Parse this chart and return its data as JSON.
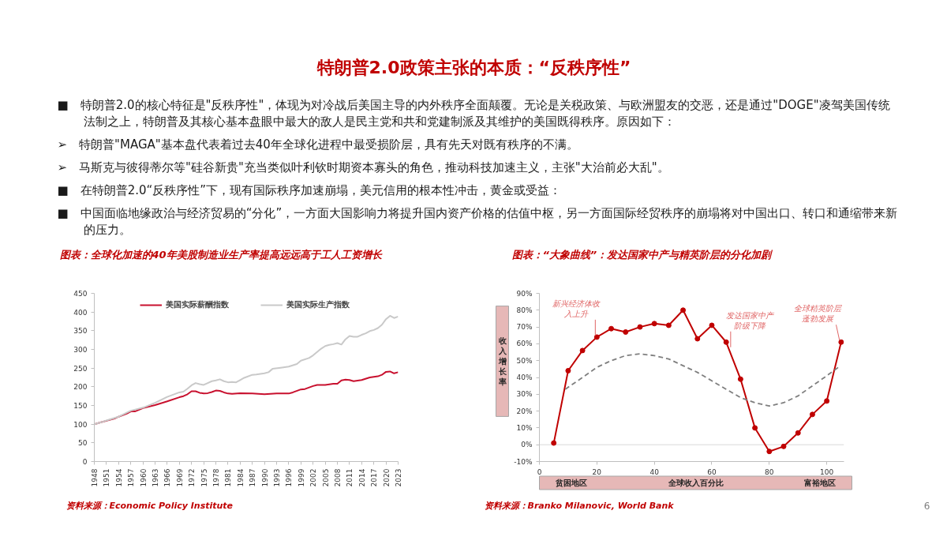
{
  "chart_data": [
    {
      "type": "other",
      "title": "特朗普2.0政策主张的本质：“反秩序性”",
      "annotations": [
        "■ 特朗普2.0的核心特征是\"反秩序性\"，体现为对冷战后美国主导的内外秩序全面颠覆。无论是关税政策、与欧洲盟友的交恶，还是通过\"DOGE\"凌驾美国传统法制之上，特朗普及其核心基本盘眼中最大的敌人是民主党和共和党建制派及其维护的美国既得秩序。原因如下：",
        "➢ 特朗普\"MAGA\"基本盘代表着过去40年全球化进程中最受损阶层，具有先天对既有秩序的不满。",
        "➢ 马斯克与彼得蒂尔等\"硅谷新贵\"充当类似叶利钦时期资本寡头的角色，推动科技加速主义，主张\"大治前必大乱\"。",
        "■ 在特朗普2.0“反秩序性”下，现有国际秩序加速崩塌，美元信用的根本性冲击，黄金或受益：",
        "■ 中国面临地缘政治与经济贸易的“分化”，一方面大国影响力将提升国内资产价格的估值中枢，另一方面国际经贸秩序的崩塌将对中国出口、转口和通缩带来新的压力。"
      ]
    },
    {
      "type": "line",
      "title": "图表：全球化加速的40年美股制造业生产率提高远远高于工人工资增长",
      "legend": "top",
      "xlim": [
        1948,
        2023
      ],
      "xticks": [
        1948,
        1951,
        1954,
        1957,
        1960,
        1963,
        1966,
        1969,
        1972,
        1975,
        1978,
        1981,
        1984,
        1987,
        1990,
        1993,
        1996,
        1999,
        2002,
        2005,
        2008,
        2011,
        2014,
        2017,
        2020,
        2023
      ],
      "ylim": [
        0,
        450
      ],
      "yticks": [
        0,
        50,
        100,
        150,
        200,
        250,
        300,
        350,
        400,
        450
      ],
      "series": [
        {
          "name": "美国实际薪酬指数",
          "color": "#c8102e",
          "x": [
            1948,
            1950,
            1951,
            1953,
            1954,
            1956,
            1957,
            1958,
            1960,
            1963,
            1966,
            1969,
            1970,
            1971,
            1972,
            1973,
            1974,
            1975,
            1976,
            1977,
            1978,
            1979,
            1980,
            1981,
            1982,
            1984,
            1987,
            1990,
            1993,
            1996,
            1997,
            1999,
            2000,
            2002,
            2003,
            2005,
            2007,
            2008,
            2009,
            2010,
            2011,
            2012,
            2014,
            2016,
            2018,
            2019,
            2020,
            2021,
            2022,
            2023
          ],
          "values": [
            100,
            106,
            109,
            115,
            120,
            128,
            134,
            134,
            143,
            151,
            161,
            172,
            175,
            180,
            188,
            188,
            184,
            182,
            183,
            186,
            190,
            189,
            185,
            182,
            181,
            183,
            182,
            180,
            182,
            182,
            185,
            193,
            194,
            202,
            205,
            205,
            208,
            208,
            217,
            219,
            218,
            215,
            218,
            225,
            228,
            232,
            240,
            241,
            236,
            239
          ]
        },
        {
          "name": "美国实际生产指数",
          "color": "#c9c9c9",
          "x": [
            1948,
            1950,
            1951,
            1954,
            1957,
            1960,
            1963,
            1966,
            1969,
            1970,
            1971,
            1972,
            1973,
            1974,
            1975,
            1976,
            1977,
            1978,
            1979,
            1980,
            1981,
            1982,
            1983,
            1984,
            1985,
            1987,
            1988,
            1990,
            1991,
            1992,
            1994,
            1996,
            1998,
            1999,
            2001,
            2002,
            2003,
            2004,
            2005,
            2006,
            2007,
            2008,
            2009,
            2010,
            2011,
            2012,
            2013,
            2014,
            2015,
            2016,
            2017,
            2018,
            2019,
            2020,
            2021,
            2022,
            2023
          ],
          "values": [
            100,
            106,
            110,
            120,
            136,
            144,
            157,
            173,
            185,
            187,
            195,
            204,
            210,
            207,
            205,
            210,
            215,
            217,
            220,
            215,
            212,
            213,
            212,
            218,
            224,
            232,
            233,
            236,
            239,
            248,
            251,
            254,
            261,
            270,
            277,
            284,
            293,
            302,
            309,
            312,
            314,
            317,
            313,
            327,
            336,
            334,
            334,
            339,
            343,
            349,
            352,
            357,
            366,
            381,
            390,
            384,
            388
          ]
        }
      ],
      "annotations": [
        "资料来源：Economic Policy Institute"
      ]
    },
    {
      "type": "line",
      "title": "图表：“大象曲线”：发达国家中产与精英阶层的分化加剧",
      "ylabel": "收入增长率",
      "xlabel": "全球收入百分比",
      "marker": "circle",
      "xlim": [
        0,
        106
      ],
      "xticks": [
        0,
        20,
        40,
        60,
        80,
        100
      ],
      "ylim": [
        -10,
        90
      ],
      "yticks": [
        {
          "value": -10,
          "label": "-10%"
        },
        {
          "value": 0,
          "label": "0%"
        },
        {
          "value": 10,
          "label": "10%"
        },
        {
          "value": 20,
          "label": "20%"
        },
        {
          "value": 30,
          "label": "30%"
        },
        {
          "value": 40,
          "label": "40%"
        },
        {
          "value": 50,
          "label": "50%"
        },
        {
          "value": 60,
          "label": "60%"
        },
        {
          "value": 70,
          "label": "70%"
        },
        {
          "value": 80,
          "label": "80%"
        },
        {
          "value": 90,
          "label": "90%"
        }
      ],
      "ref_lines": [
        {
          "axis": "y",
          "value": 0,
          "color": "#d9d9d9"
        }
      ],
      "series": [
        {
          "color": "#c00000",
          "x": [
            5,
            10,
            15,
            20,
            25,
            30,
            35,
            40,
            45,
            50,
            55,
            60,
            65,
            70,
            75,
            80,
            85,
            90,
            95,
            100,
            105
          ],
          "values": [
            1,
            44,
            56,
            64,
            69,
            67,
            70,
            72,
            71,
            80,
            63,
            71,
            61,
            39,
            10,
            -4,
            -1,
            7,
            18,
            26,
            61
          ]
        },
        {
          "color": "#7f7f7f",
          "line_style": "dashed",
          "marker": "none",
          "x": [
            9,
            15,
            20,
            25,
            30,
            35,
            40,
            45,
            50,
            55,
            60,
            65,
            70,
            75,
            80,
            85,
            90,
            95,
            100,
            104
          ],
          "values": [
            33,
            40,
            46,
            50,
            53,
            54,
            53,
            51,
            47,
            43,
            38,
            33,
            28,
            25,
            23,
            25,
            29,
            35,
            41,
            46
          ]
        }
      ],
      "annotations": [
        {
          "text": "新兴经济体收入上升",
          "x": 20,
          "y": 64
        },
        {
          "text": "发达国家中产阶级下降",
          "x": 66,
          "y": 57
        },
        {
          "text": "全球精英阶层蓬勃发展",
          "x": 105,
          "y": 61
        },
        "贫困地区",
        "富裕地区",
        "资料来源：Branko Milanovic, World Bank",
        "6"
      ]
    }
  ]
}
